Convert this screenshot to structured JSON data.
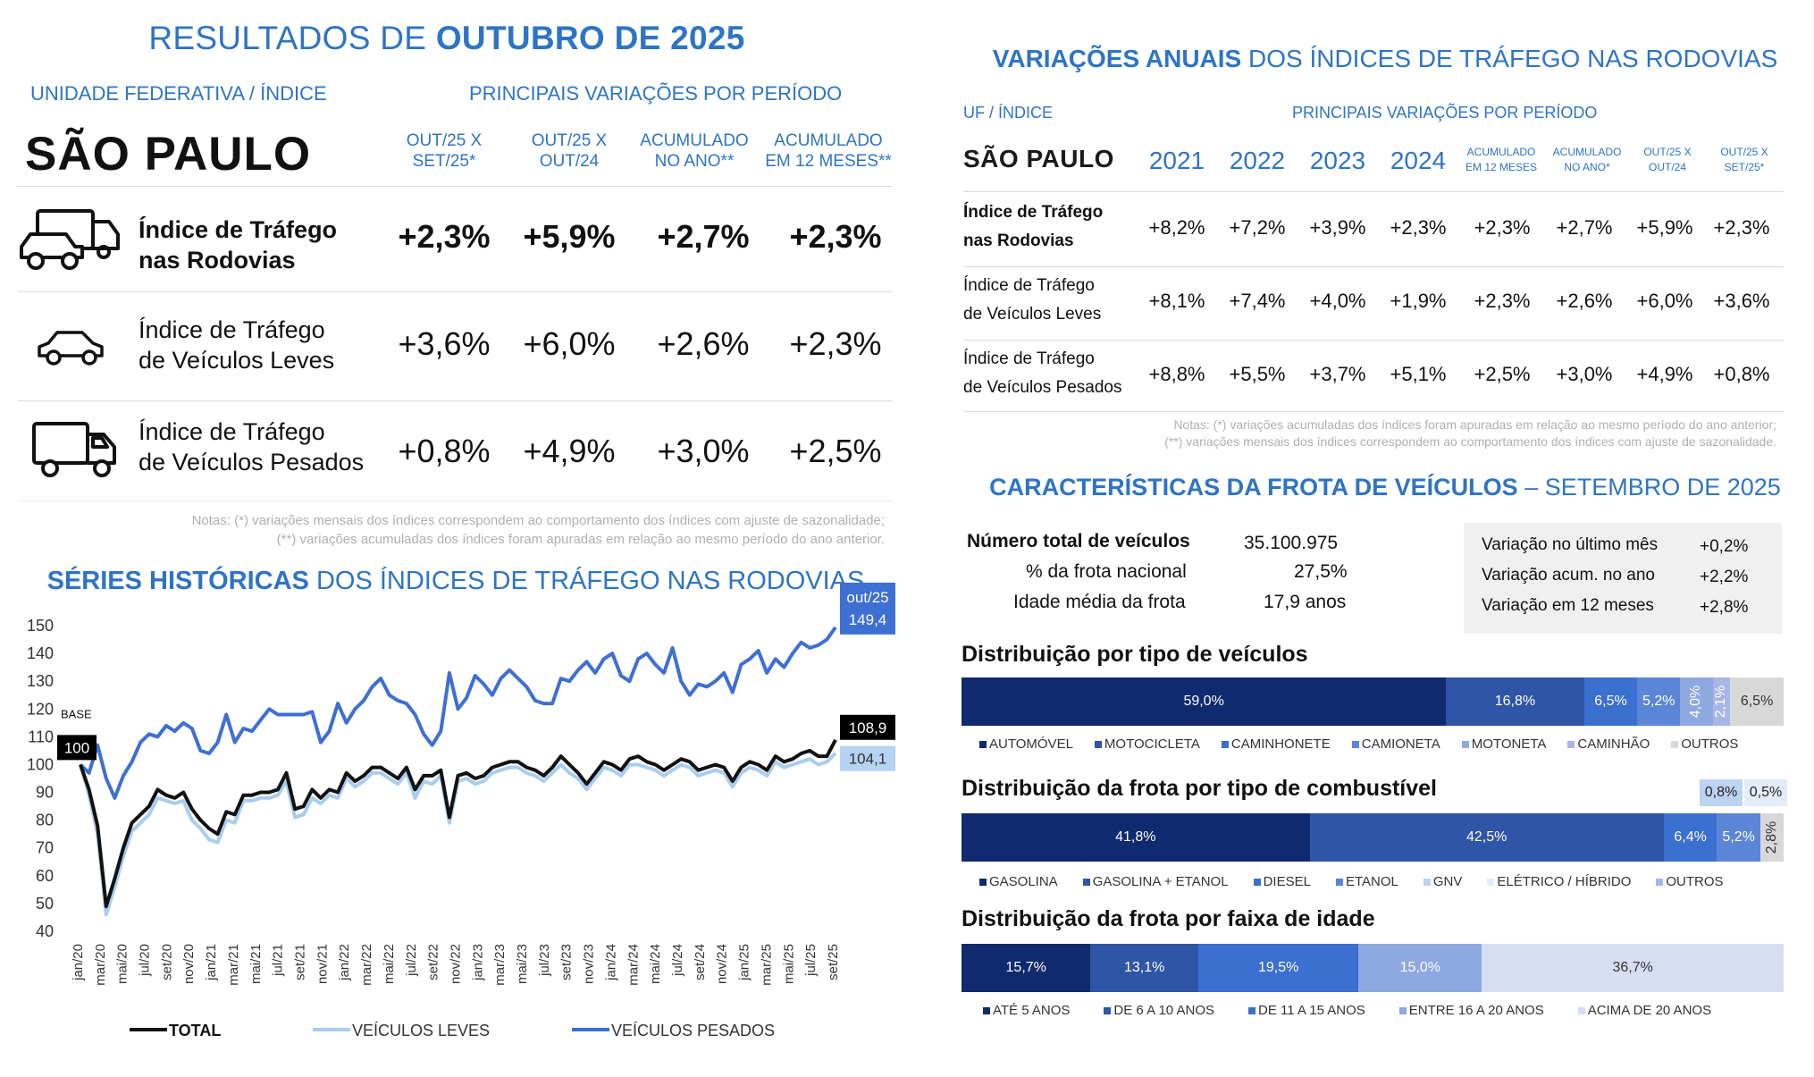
{
  "colors": {
    "navy": "#0f2a6e",
    "blue_mid": "#2f55a6",
    "blue": "#3b6fd0",
    "blue_light": "#5b86d8",
    "blue_lighter": "#8ea8e0",
    "lilac": "#a7b6e6",
    "pale": "#d7def2",
    "grey_light": "#d8d8d8",
    "accent": "#2e74c4",
    "total_line": "#111111",
    "leves_line": "#a9cdef",
    "pesados_line": "#3e6fd3"
  },
  "left": {
    "title_prefix": "RESULTADOS DE ",
    "title_bold": "OUTUBRO DE 2025",
    "uf_label": "UNIDADE FEDERATIVA / ÍNDICE",
    "periods_label": "PRINCIPAIS VARIAÇÕES POR PERÍODO",
    "state": "SÃO PAULO",
    "col_headers": [
      {
        "l1": "OUT/25 X",
        "l2": "SET/25*"
      },
      {
        "l1": "OUT/25 X",
        "l2": "OUT/24"
      },
      {
        "l1": "ACUMULADO",
        "l2": "NO ANO**"
      },
      {
        "l1": "ACUMULADO",
        "l2": "EM 12 MESES**"
      }
    ],
    "rows": [
      {
        "l1": "Índice de Tráfego",
        "l2": "nas Rodovias",
        "values": [
          "+2,3%",
          "+5,9%",
          "+2,7%",
          "+2,3%"
        ],
        "icon": "truck-and-car-icon"
      },
      {
        "l1": "Índice de Tráfego",
        "l2": "de Veículos Leves",
        "values": [
          "+3,6%",
          "+6,0%",
          "+2,6%",
          "+2,3%"
        ],
        "icon": "car-icon"
      },
      {
        "l1": "Índice de Tráfego",
        "l2": "de Veículos Pesados",
        "values": [
          "+0,8%",
          "+4,9%",
          "+3,0%",
          "+2,5%"
        ],
        "icon": "truck-icon"
      }
    ],
    "notes_l1": "Notas: (*) variações mensais dos índices correspondem ao comportamento dos índices com ajuste de sazonalidade;",
    "notes_l2": "(**) variações acumuladas dos índices foram apuradas em relação ao mesmo período do ano anterior.",
    "series_title_bold": "SÉRIES HISTÓRICAS",
    "series_title_rest": " DOS ÍNDICES DE TRÁFEGO NAS RODOVIAS"
  },
  "chart_data": {
    "type": "line",
    "title": "SÉRIES HISTÓRICAS DOS ÍNDICES DE TRÁFEGO NAS RODOVIAS",
    "ylim": [
      40,
      150
    ],
    "yticks": [
      150,
      140,
      130,
      120,
      110,
      100,
      90,
      80,
      70,
      60,
      50,
      40
    ],
    "xtick_labels": [
      "jan/20",
      "mar/20",
      "mai/20",
      "jul/20",
      "set/20",
      "nov/20",
      "jan/21",
      "mar/21",
      "mai/21",
      "jul/21",
      "set/21",
      "nov/21",
      "jan/22",
      "mar/22",
      "mai/22",
      "jul/22",
      "set/22",
      "nov/22",
      "jan/23",
      "mar/23",
      "mai/23",
      "jul/23",
      "set/23",
      "nov/23",
      "jan/24",
      "mar/24",
      "mai/24",
      "jul/24",
      "set/24",
      "nov/24",
      "jan/25",
      "mar/25",
      "mai/25",
      "jul/25",
      "set/25"
    ],
    "base_label": "BASE",
    "base_value_label": "100",
    "annotations": {
      "pesados_period": "out/25",
      "pesados_value": "149,4",
      "total_value": "108,9",
      "leves_value": "104,1"
    },
    "series": [
      {
        "name": "TOTAL",
        "values": [
          100,
          91,
          78,
          49,
          59,
          70,
          79,
          82,
          85,
          91,
          89,
          88,
          90,
          84,
          80,
          77,
          75,
          83,
          82,
          89,
          89,
          90,
          90,
          91,
          97,
          84,
          85,
          91,
          88,
          91,
          90,
          97,
          94,
          96,
          99,
          99,
          97,
          95,
          99,
          91,
          96,
          96,
          98,
          81,
          96,
          97,
          95,
          96,
          99,
          100,
          101,
          101,
          99,
          98,
          96,
          99,
          103,
          100,
          97,
          93,
          97,
          101,
          100,
          98,
          102,
          103,
          101,
          100,
          98,
          100,
          102,
          101,
          98,
          99,
          100,
          99,
          94,
          99,
          101,
          100,
          98,
          103,
          101,
          102,
          104,
          105,
          103,
          103,
          108.9
        ]
      },
      {
        "name": "VEÍCULOS LEVES",
        "values": [
          100,
          89,
          75,
          46,
          56,
          67,
          76,
          79,
          82,
          88,
          87,
          86,
          87,
          80,
          77,
          73,
          72,
          80,
          79,
          87,
          87,
          88,
          88,
          89,
          94,
          81,
          82,
          88,
          86,
          89,
          88,
          95,
          92,
          94,
          97,
          97,
          95,
          93,
          97,
          88,
          94,
          93,
          96,
          79,
          94,
          95,
          93,
          94,
          97,
          98,
          99,
          99,
          97,
          96,
          94,
          97,
          100,
          97,
          95,
          91,
          95,
          99,
          98,
          96,
          100,
          100,
          99,
          98,
          96,
          98,
          100,
          99,
          96,
          97,
          98,
          97,
          92,
          97,
          99,
          98,
          96,
          101,
          99,
          100,
          101,
          102,
          100,
          101,
          104.1
        ]
      },
      {
        "name": "VEÍCULOS PESADOS",
        "values": [
          100,
          97,
          107,
          95,
          88,
          96,
          101,
          108,
          111,
          110,
          114,
          112,
          115,
          113,
          105,
          104,
          108,
          118,
          108,
          113,
          112,
          116,
          120,
          118,
          118,
          118,
          118,
          119,
          108,
          112,
          122,
          115,
          120,
          123,
          128,
          131,
          125,
          123,
          122,
          118,
          111,
          107,
          112,
          133,
          120,
          124,
          132,
          129,
          125,
          131,
          134,
          131,
          128,
          123,
          122,
          122,
          131,
          130,
          134,
          137,
          133,
          138,
          140,
          132,
          130,
          138,
          140,
          136,
          133,
          142,
          130,
          125,
          129,
          128,
          130,
          133,
          126,
          136,
          138,
          141,
          133,
          138,
          135,
          140,
          144,
          142,
          143,
          145,
          149.4
        ]
      }
    ],
    "legend": [
      "TOTAL",
      "VEÍCULOS LEVES",
      "VEÍCULOS PESADOS"
    ]
  },
  "right": {
    "title_bold": "VARIAÇÕES ANUAIS",
    "title_rest": " DOS ÍNDICES DE TRÁFEGO NAS RODOVIAS",
    "uf_label": "UF / ÍNDICE",
    "periods_label": "PRINCIPAIS VARIAÇÕES POR PERÍODO",
    "state": "SÃO PAULO",
    "years": [
      "2021",
      "2022",
      "2023",
      "2024"
    ],
    "small_heads": [
      {
        "l1": "ACUMULADO",
        "l2": "EM 12 MESES"
      },
      {
        "l1": "ACUMULADO",
        "l2": "NO ANO*"
      },
      {
        "l1": "OUT/25 X",
        "l2": "OUT/24"
      },
      {
        "l1": "OUT/25 X",
        "l2": "SET/25*"
      }
    ],
    "rows": [
      {
        "l1": "Índice de Tráfego",
        "l2": "nas Rodovias",
        "bold": true,
        "values": [
          "+8,2%",
          "+7,2%",
          "+3,9%",
          "+2,3%",
          "+2,3%",
          "+2,7%",
          "+5,9%",
          "+2,3%"
        ]
      },
      {
        "l1": "Índice de Tráfego",
        "l2": "de Veículos Leves",
        "bold": false,
        "values": [
          "+8,1%",
          "+7,4%",
          "+4,0%",
          "+1,9%",
          "+2,3%",
          "+2,6%",
          "+6,0%",
          "+3,6%"
        ]
      },
      {
        "l1": "Índice de Tráfego",
        "l2": "de Veículos Pesados",
        "bold": false,
        "values": [
          "+8,8%",
          "+5,5%",
          "+3,7%",
          "+5,1%",
          "+2,5%",
          "+3,0%",
          "+4,9%",
          "+0,8%"
        ]
      }
    ],
    "notes_l1": "Notas: (*) variações acumuladas dos índices foram apuradas em relação ao mesmo período do ano anterior;",
    "notes_l2": "(**) variações mensais dos índices correspondem ao comportamento dos índices com ajuste de sazonalidade."
  },
  "fleet": {
    "title_bold": "CARACTERÍSTICAS DA FROTA DE VEÍCULOS",
    "title_rest": " – SETEMBRO DE 2025",
    "total_label": "Número total de veículos",
    "total_value": "35.100.975",
    "share_label": "% da frota nacional",
    "share_value": "27,5%",
    "age_label": "Idade média da frota",
    "age_value": "17,9 anos",
    "variations": [
      {
        "label": "Variação no último mês",
        "value": "+0,2%"
      },
      {
        "label": "Variação acum. no ano",
        "value": "+2,2%"
      },
      {
        "label": "Variação em 12 meses",
        "value": "+2,8%"
      }
    ]
  },
  "dist_type": {
    "title": "Distribuição por tipo de veículos",
    "segments": [
      {
        "label": "59,0%",
        "value": 59.0,
        "color": "#0f2a6e"
      },
      {
        "label": "16,8%",
        "value": 16.8,
        "color": "#2f55a6"
      },
      {
        "label": "6,5%",
        "value": 6.5,
        "color": "#3b6fd0"
      },
      {
        "label": "5,2%",
        "value": 5.2,
        "color": "#5b86d8"
      },
      {
        "label": "4,0%",
        "value": 4.0,
        "color": "#8ea8e0"
      },
      {
        "label": "2,1%",
        "value": 2.1,
        "color": "#a7b6e6"
      },
      {
        "label": "6,5%",
        "value": 6.5,
        "color": "#d8d8d8"
      }
    ],
    "legend": [
      {
        "label": "AUTOMÓVEL",
        "color": "#0f2a6e"
      },
      {
        "label": "MOTOCICLETA",
        "color": "#2f55a6"
      },
      {
        "label": "CAMINHONETE",
        "color": "#3b6fd0"
      },
      {
        "label": "CAMIONETA",
        "color": "#5b86d8"
      },
      {
        "label": "MOTONETA",
        "color": "#8ea8e0"
      },
      {
        "label": "CAMINHÃO",
        "color": "#a7b6e6"
      },
      {
        "label": "OUTROS",
        "color": "#d8d8d8"
      }
    ]
  },
  "dist_fuel": {
    "title": "Distribuição da frota por tipo de combustível",
    "extra_boxes": [
      {
        "label": "0,8%",
        "color": "#bcd3f2"
      },
      {
        "label": "0,5%",
        "color": "#e3ecf8"
      }
    ],
    "segments": [
      {
        "label": "41,8%",
        "value": 41.8,
        "color": "#0f2a6e"
      },
      {
        "label": "42,5%",
        "value": 42.5,
        "color": "#2f55a6"
      },
      {
        "label": "6,4%",
        "value": 6.4,
        "color": "#3b6fd0"
      },
      {
        "label": "5,2%",
        "value": 5.2,
        "color": "#5b86d8"
      },
      {
        "label": "2,8%",
        "value": 2.8,
        "color": "#d8d8d8"
      }
    ],
    "legend": [
      {
        "label": "GASOLINA",
        "color": "#0f2a6e"
      },
      {
        "label": "GASOLINA + ETANOL",
        "color": "#2f55a6"
      },
      {
        "label": "DIESEL",
        "color": "#3b6fd0"
      },
      {
        "label": "ETANOL",
        "color": "#5b86d8"
      },
      {
        "label": "GNV",
        "color": "#bcd3f2"
      },
      {
        "label": "ELÉTRICO / HÍBRIDO",
        "color": "#e3ecf8"
      },
      {
        "label": "OUTROS",
        "color": "#a7b6e6"
      }
    ]
  },
  "dist_age": {
    "title": "Distribuição da frota por faixa de idade",
    "segments": [
      {
        "label": "15,7%",
        "value": 15.7,
        "color": "#0f2a6e"
      },
      {
        "label": "13,1%",
        "value": 13.1,
        "color": "#2f55a6"
      },
      {
        "label": "19,5%",
        "value": 19.5,
        "color": "#3b6fd0"
      },
      {
        "label": "15,0%",
        "value": 15.0,
        "color": "#8ea8e0"
      },
      {
        "label": "36,7%",
        "value": 36.7,
        "color": "#d7def2"
      }
    ],
    "legend": [
      {
        "label": "ATÉ 5 ANOS",
        "color": "#0f2a6e"
      },
      {
        "label": "DE 6 A 10 ANOS",
        "color": "#2f55a6"
      },
      {
        "label": "DE 11 A 15 ANOS",
        "color": "#3b6fd0"
      },
      {
        "label": "ENTRE 16 A 20 ANOS",
        "color": "#8ea8e0"
      },
      {
        "label": "ACIMA DE 20 ANOS",
        "color": "#d7def2"
      }
    ]
  }
}
